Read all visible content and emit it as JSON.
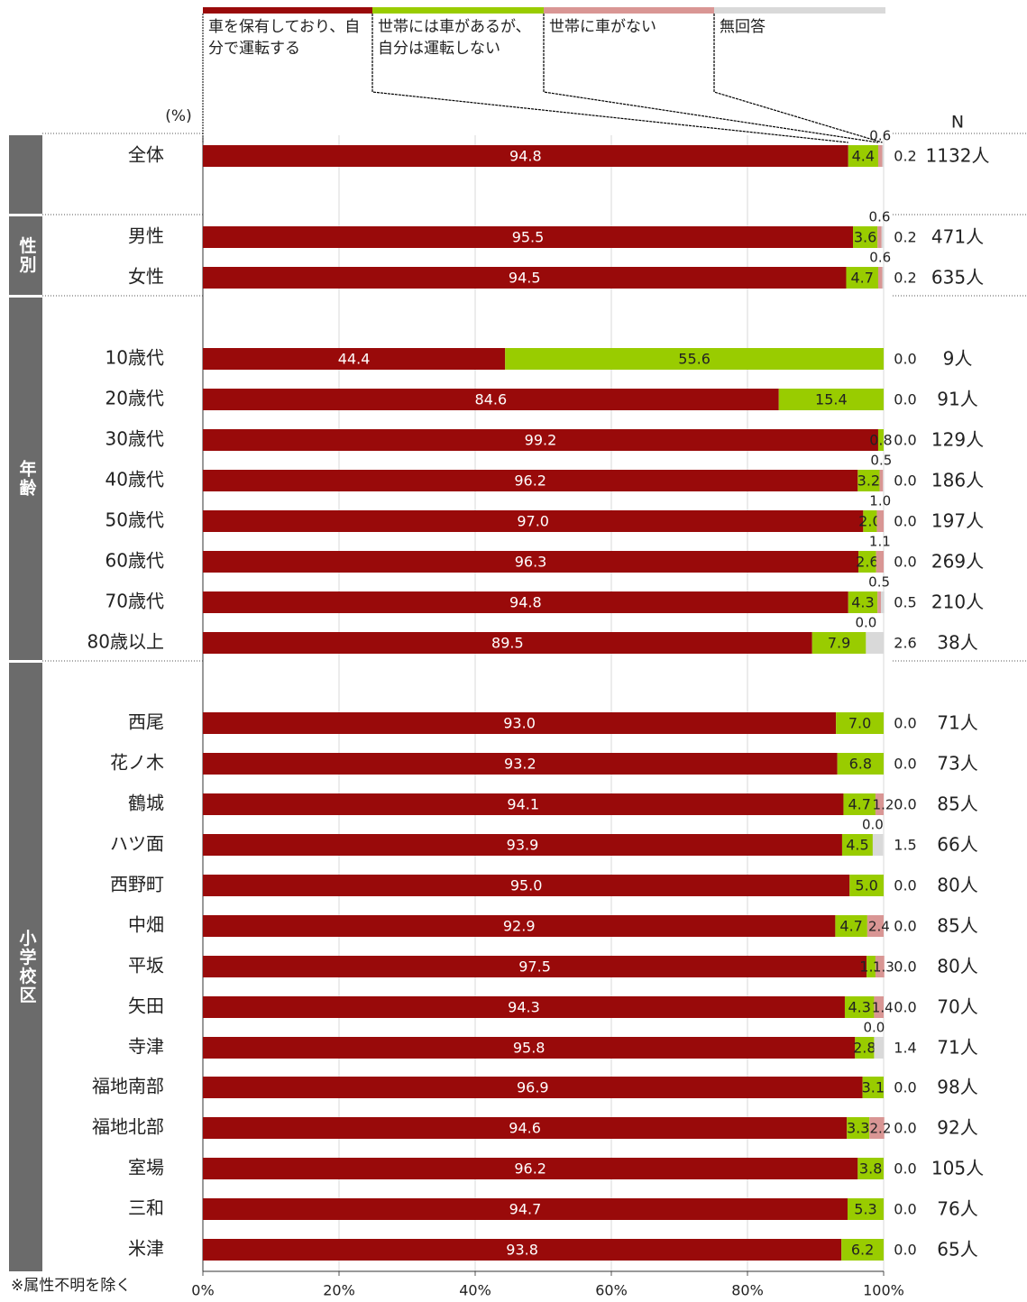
{
  "chart_data": {
    "type": "stacked-bar-horizontal",
    "unit_label": "(%)",
    "n_header": "N",
    "footnote": "※属性不明を除く",
    "group_labels": [
      "性別",
      "年齢",
      "小学校区"
    ],
    "categories": [
      "全体",
      "男性",
      "女性",
      "10歳代",
      "20歳代",
      "30歳代",
      "40歳代",
      "50歳代",
      "60歳代",
      "70歳代",
      "80歳以上",
      "西尾",
      "花ノ木",
      "鶴城",
      "ハツ面",
      "西野町",
      "中畑",
      "平坂",
      "矢田",
      "寺津",
      "福地南部",
      "福地北部",
      "室場",
      "三和",
      "米津"
    ],
    "n_labels": [
      "1132人",
      "471人",
      "635人",
      "9人",
      "91人",
      "129人",
      "186人",
      "197人",
      "269人",
      "210人",
      "38人",
      "71人",
      "73人",
      "85人",
      "66人",
      "80人",
      "85人",
      "80人",
      "70人",
      "71人",
      "98人",
      "92人",
      "105人",
      "76人",
      "65人"
    ],
    "series": [
      {
        "name": "車を保有しており、自分で運転する",
        "color": "#990a0a",
        "values": [
          94.8,
          95.5,
          94.5,
          44.4,
          84.6,
          99.2,
          96.2,
          97.0,
          96.3,
          94.8,
          89.5,
          93.0,
          93.2,
          94.1,
          93.9,
          95.0,
          92.9,
          97.5,
          94.3,
          95.8,
          96.9,
          94.6,
          96.2,
          94.7,
          93.8
        ],
        "value_labels": [
          "94.8",
          "95.5",
          "94.5",
          "44.4",
          "84.6",
          "99.2",
          "96.2",
          "97.0",
          "96.3",
          "94.8",
          "89.5",
          "93.0",
          "93.2",
          "94.1",
          "93.9",
          "95.0",
          "92.9",
          "97.5",
          "94.3",
          "95.8",
          "96.9",
          "94.6",
          "96.2",
          "94.7",
          "93.8"
        ]
      },
      {
        "name": "世帯には車があるが、自分は運転しない",
        "color": "#99cc00",
        "values": [
          4.4,
          3.6,
          4.7,
          55.6,
          15.4,
          0.8,
          3.2,
          2.0,
          2.6,
          4.3,
          7.9,
          7.0,
          6.8,
          4.7,
          4.5,
          5.0,
          4.7,
          1.3,
          4.3,
          2.8,
          3.1,
          3.3,
          3.8,
          5.3,
          6.2
        ],
        "value_labels": [
          "4.4",
          "3.6",
          "4.7",
          "55.6",
          "15.4",
          "0.8",
          "3.2",
          "2.0",
          "2.6",
          "4.3",
          "7.9",
          "7.0",
          "6.8",
          "4.7",
          "4.5",
          "5.0",
          "4.7",
          "1.3",
          "4.3",
          "2.8",
          "3.1",
          "3.3",
          "3.8",
          "5.3",
          "6.2"
        ]
      },
      {
        "name": "世帯に車がない",
        "color": "#d99694",
        "values": [
          0.6,
          0.6,
          0.6,
          0.0,
          0.0,
          0.0,
          0.5,
          1.0,
          1.1,
          0.5,
          0.0,
          0.0,
          0.0,
          1.2,
          0.0,
          0.0,
          2.4,
          1.3,
          1.4,
          0.0,
          0.0,
          2.2,
          0.0,
          0.0,
          0.0
        ],
        "value_labels": [
          "0.6",
          "0.6",
          "0.6",
          "0.0",
          "0.0",
          "0.0",
          "0.5",
          "1.0",
          "1.1",
          "0.5",
          "0.0",
          "0.0",
          "0.0",
          "1.2",
          "0.0",
          "0.0",
          "2.4",
          "1.3",
          "1.4",
          "0.0",
          "0.0",
          "2.2",
          "0.0",
          "0.0",
          "0.0"
        ]
      },
      {
        "name": "無回答",
        "color": "#d9d9d9",
        "values": [
          0.2,
          0.2,
          0.2,
          0.0,
          0.0,
          0.0,
          0.0,
          0.0,
          0.0,
          0.5,
          2.6,
          0.0,
          0.0,
          0.0,
          1.5,
          0.0,
          0.0,
          0.0,
          0.0,
          1.4,
          0.0,
          0.0,
          0.0,
          0.0,
          0.0
        ],
        "value_labels": [
          "0.2",
          "0.2",
          "0.2",
          "0.0",
          "0.0",
          "0.0",
          "0.0",
          "0.0",
          "0.0",
          "0.5",
          "2.6",
          "0.0",
          "0.0",
          "0.0",
          "1.5",
          "0.0",
          "0.0",
          "0.0",
          "0.0",
          "1.4",
          "0.0",
          "0.0",
          "0.0",
          "0.0",
          "0.0"
        ]
      }
    ],
    "xlim": [
      0,
      100
    ],
    "xticks": [
      {
        "value": 0,
        "label": "0%"
      },
      {
        "value": 20,
        "label": "20%"
      },
      {
        "value": 40,
        "label": "40%"
      },
      {
        "value": 60,
        "label": "60%"
      },
      {
        "value": 80,
        "label": "80%"
      },
      {
        "value": 100,
        "label": "100%"
      }
    ],
    "grid": true
  }
}
